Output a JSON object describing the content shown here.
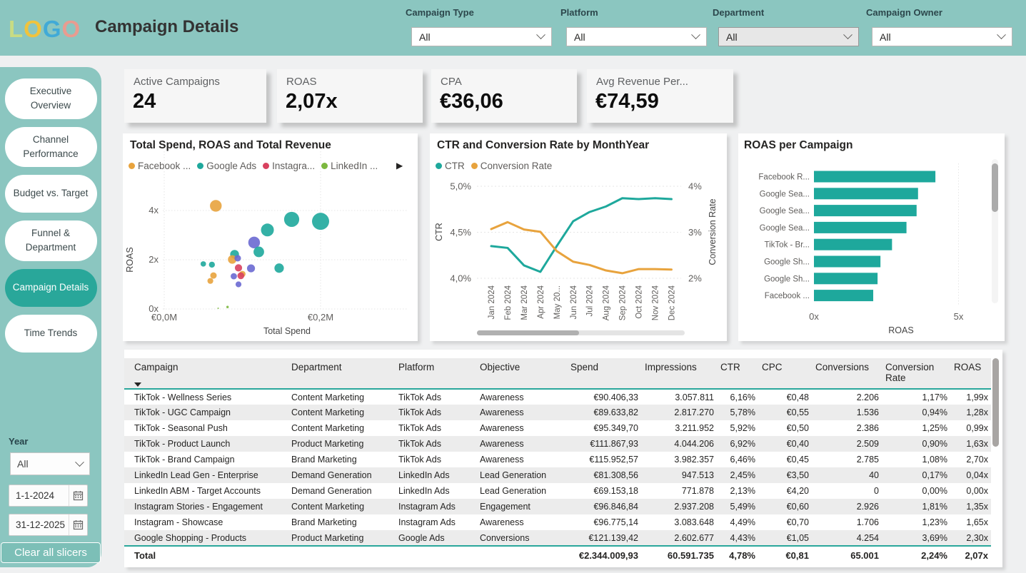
{
  "header": {
    "logo_letters": [
      {
        "ch": "L",
        "color": "#c8dc83"
      },
      {
        "ch": "O",
        "color": "#f0c33c"
      },
      {
        "ch": "G",
        "color": "#41aad7"
      },
      {
        "ch": "O",
        "color": "#e89c90"
      }
    ],
    "title": "Campaign Details",
    "filters": [
      {
        "label": "Campaign Type",
        "value": "All",
        "muted": false
      },
      {
        "label": "Platform",
        "value": "All",
        "muted": false
      },
      {
        "label": "Department",
        "value": "All",
        "muted": true
      },
      {
        "label": "Campaign Owner",
        "value": "All",
        "muted": false
      }
    ]
  },
  "sidebar": {
    "items": [
      {
        "label": "Executive Overview",
        "active": false
      },
      {
        "label": "Channel Performance",
        "active": false
      },
      {
        "label": "Budget vs. Target",
        "active": false
      },
      {
        "label": "Funnel & Department",
        "active": false
      },
      {
        "label": "Campaign Details",
        "active": true
      },
      {
        "label": "Time Trends",
        "active": false
      }
    ],
    "year_label": "Year",
    "year_value": "All",
    "date_from": "1-1-2024",
    "date_to": "31-12-2025",
    "clear_button": "Clear all slicers"
  },
  "kpis": [
    {
      "label": "Active Campaigns",
      "value": "24"
    },
    {
      "label": "ROAS",
      "value": "2,07x"
    },
    {
      "label": "CPA",
      "value": "€36,06"
    },
    {
      "label": "Avg Revenue Per...",
      "value": "€74,59"
    }
  ],
  "chart_data": [
    {
      "type": "scatter",
      "title": "Total Spend, ROAS and Total Revenue",
      "xlabel": "Total Spend",
      "ylabel": "ROAS",
      "x_ticks": [
        {
          "label": "€0,0M",
          "value": 0
        },
        {
          "label": "€0,2M",
          "value": 0.2
        }
      ],
      "y_ticks": [
        {
          "label": "0x",
          "value": 0
        },
        {
          "label": "2x",
          "value": 2
        },
        {
          "label": "4x",
          "value": 4
        }
      ],
      "xlim": [
        0,
        0.31
      ],
      "ylim": [
        0,
        5.3
      ],
      "legend": [
        {
          "name": "Facebook ...",
          "color": "#e8a33d"
        },
        {
          "name": "Google Ads",
          "color": "#1ea89c"
        },
        {
          "name": "Instagra...",
          "color": "#d8415f"
        },
        {
          "name": "LinkedIn ...",
          "color": "#7cb83f"
        }
      ],
      "legend_more_icon": "▶",
      "points": [
        {
          "x": 0.066,
          "y": 4.19,
          "r": 8.2,
          "series": "Facebook ..."
        },
        {
          "x": 0.2,
          "y": 3.56,
          "r": 12.0,
          "series": "Google Ads"
        },
        {
          "x": 0.163,
          "y": 3.64,
          "r": 10.6,
          "series": "Google Ads"
        },
        {
          "x": 0.132,
          "y": 3.21,
          "r": 9.0,
          "series": "Google Ads"
        },
        {
          "x": 0.115,
          "y": 2.7,
          "r": 8.2,
          "series": "TikTok Ads"
        },
        {
          "x": 0.121,
          "y": 2.32,
          "r": 7.4,
          "series": "Google Ads"
        },
        {
          "x": 0.09,
          "y": 2.22,
          "r": 6.2,
          "series": "Google Ads"
        },
        {
          "x": 0.087,
          "y": 2.01,
          "r": 6.0,
          "series": "Facebook ..."
        },
        {
          "x": 0.094,
          "y": 2.06,
          "r": 4.6,
          "series": "TikTok Ads"
        },
        {
          "x": 0.05,
          "y": 1.83,
          "r": 3.8,
          "series": "Google Ads"
        },
        {
          "x": 0.061,
          "y": 1.8,
          "r": 4.2,
          "series": "Google Ads"
        },
        {
          "x": 0.095,
          "y": 1.67,
          "r": 5.1,
          "series": "Instagra..."
        },
        {
          "x": 0.111,
          "y": 1.65,
          "r": 5.6,
          "series": "TikTok Ads"
        },
        {
          "x": 0.147,
          "y": 1.66,
          "r": 6.6,
          "series": "Google Ads"
        },
        {
          "x": 0.063,
          "y": 1.36,
          "r": 4.5,
          "series": "Facebook ..."
        },
        {
          "x": 0.1,
          "y": 1.42,
          "r": 4.4,
          "series": "Facebook ..."
        },
        {
          "x": 0.098,
          "y": 1.35,
          "r": 4.8,
          "series": "Instagra..."
        },
        {
          "x": 0.089,
          "y": 1.33,
          "r": 4.4,
          "series": "TikTok Ads"
        },
        {
          "x": 0.059,
          "y": 1.14,
          "r": 4.1,
          "series": "Facebook ..."
        },
        {
          "x": 0.095,
          "y": 1.0,
          "r": 4.1,
          "series": "TikTok Ads"
        },
        {
          "x": 0.069,
          "y": 0.03,
          "r": 1.0,
          "series": "LinkedIn ..."
        },
        {
          "x": 0.081,
          "y": 0.08,
          "r": 1.7,
          "series": "LinkedIn ..."
        }
      ],
      "series_colors": {
        "Facebook ...": "#e8a33d",
        "Google Ads": "#1ea89c",
        "Instagra...": "#d8415f",
        "LinkedIn ...": "#7cb83f",
        "TikTok Ads": "#6a69d2"
      }
    },
    {
      "type": "line",
      "title": "CTR and Conversion Rate by MonthYear",
      "categories": [
        "Jan 2024",
        "Feb 2024",
        "Mar 2024",
        "Apr 2024",
        "May 20...",
        "Jun 2024",
        "Jul 2024",
        "Aug 2024",
        "Sep 2024",
        "Oct 2024",
        "Nov 2024",
        "Dec 2024"
      ],
      "series": [
        {
          "name": "CTR",
          "color": "#1ea89c",
          "axis": "left",
          "values": [
            4.35,
            4.33,
            4.14,
            4.07,
            4.35,
            4.62,
            4.72,
            4.78,
            4.87,
            4.86,
            4.87,
            4.86
          ]
        },
        {
          "name": "Conversion Rate",
          "color": "#e8a33d",
          "axis": "right",
          "values": [
            3.07,
            3.22,
            3.06,
            3.01,
            2.59,
            2.36,
            2.29,
            2.17,
            2.11,
            2.2,
            2.2,
            2.19
          ]
        }
      ],
      "left_axis": {
        "label": "CTR",
        "ticks": [
          {
            "label": "4,0%",
            "value": 4.0
          },
          {
            "label": "4,5%",
            "value": 4.5
          },
          {
            "label": "5,0%",
            "value": 5.0
          }
        ],
        "min": 4.0,
        "max": 5.0
      },
      "right_axis": {
        "label": "Conversion Rate",
        "ticks": [
          {
            "label": "2%",
            "value": 2
          },
          {
            "label": "3%",
            "value": 3
          },
          {
            "label": "4%",
            "value": 4
          }
        ],
        "min": 2,
        "max": 4
      }
    },
    {
      "type": "bar",
      "title": "ROAS per Campaign",
      "categories": [
        "Facebook R...",
        "Google Sea...",
        "Google Sea...",
        "Google Sea...",
        "TikTok - Br...",
        "Google Sh...",
        "Google Sh...",
        "Facebook ..."
      ],
      "values": [
        4.2,
        3.6,
        3.55,
        3.2,
        2.7,
        2.3,
        2.2,
        2.05
      ],
      "xlabel": "ROAS",
      "x_ticks": [
        {
          "label": "0x",
          "value": 0
        },
        {
          "label": "5x",
          "value": 5
        }
      ],
      "xlim": [
        0,
        5
      ],
      "bar_color": "#1ea89c"
    }
  ],
  "table": {
    "headers": [
      "Campaign",
      "Department",
      "Platform",
      "Objective",
      "Spend",
      "Impressions",
      "CTR",
      "CPC",
      "Conversions",
      "Conversion Rate",
      "ROAS"
    ],
    "rows": [
      [
        "TikTok - Wellness Series",
        "Content Marketing",
        "TikTok Ads",
        "Awareness",
        "€90.406,33",
        "3.057.811",
        "6,16%",
        "€0,48",
        "2.206",
        "1,17%",
        "1,99x"
      ],
      [
        "TikTok - UGC Campaign",
        "Content Marketing",
        "TikTok Ads",
        "Awareness",
        "€89.633,82",
        "2.817.270",
        "5,78%",
        "€0,55",
        "1.536",
        "0,94%",
        "1,28x"
      ],
      [
        "TikTok - Seasonal Push",
        "Content Marketing",
        "TikTok Ads",
        "Awareness",
        "€95.349,70",
        "3.211.952",
        "5,92%",
        "€0,50",
        "2.386",
        "1,25%",
        "0,99x"
      ],
      [
        "TikTok - Product Launch",
        "Product Marketing",
        "TikTok Ads",
        "Awareness",
        "€111.867,93",
        "4.044.206",
        "6,92%",
        "€0,40",
        "2.509",
        "0,90%",
        "1,63x"
      ],
      [
        "TikTok - Brand Campaign",
        "Brand Marketing",
        "TikTok Ads",
        "Awareness",
        "€115.952,57",
        "3.982.357",
        "6,46%",
        "€0,45",
        "2.785",
        "1,08%",
        "2,70x"
      ],
      [
        "LinkedIn Lead Gen - Enterprise",
        "Demand Generation",
        "LinkedIn Ads",
        "Lead Generation",
        "€81.308,56",
        "947.513",
        "2,45%",
        "€3,50",
        "40",
        "0,17%",
        "0,04x"
      ],
      [
        "LinkedIn ABM - Target Accounts",
        "Demand Generation",
        "LinkedIn Ads",
        "Lead Generation",
        "€69.153,18",
        "771.878",
        "2,13%",
        "€4,20",
        "0",
        "0,00%",
        "0,00x"
      ],
      [
        "Instagram Stories - Engagement",
        "Content Marketing",
        "Instagram Ads",
        "Engagement",
        "€96.846,84",
        "2.937.208",
        "5,49%",
        "€0,60",
        "2.926",
        "1,81%",
        "1,35x"
      ],
      [
        "Instagram - Showcase",
        "Brand Marketing",
        "Instagram Ads",
        "Awareness",
        "€96.775,14",
        "3.083.648",
        "4,49%",
        "€0,70",
        "1.706",
        "1,23%",
        "1,65x"
      ],
      [
        "Google Shopping - Products",
        "Product Marketing",
        "Google Ads",
        "Conversions",
        "€121.139,42",
        "2.602.677",
        "4,43%",
        "€1,05",
        "4.254",
        "3,69%",
        "2,30x"
      ]
    ],
    "total_row": [
      "Total",
      "",
      "",
      "",
      "€2.344.009,93",
      "60.591.735",
      "4,78%",
      "€0,81",
      "65.001",
      "2,24%",
      "2,07x"
    ]
  }
}
